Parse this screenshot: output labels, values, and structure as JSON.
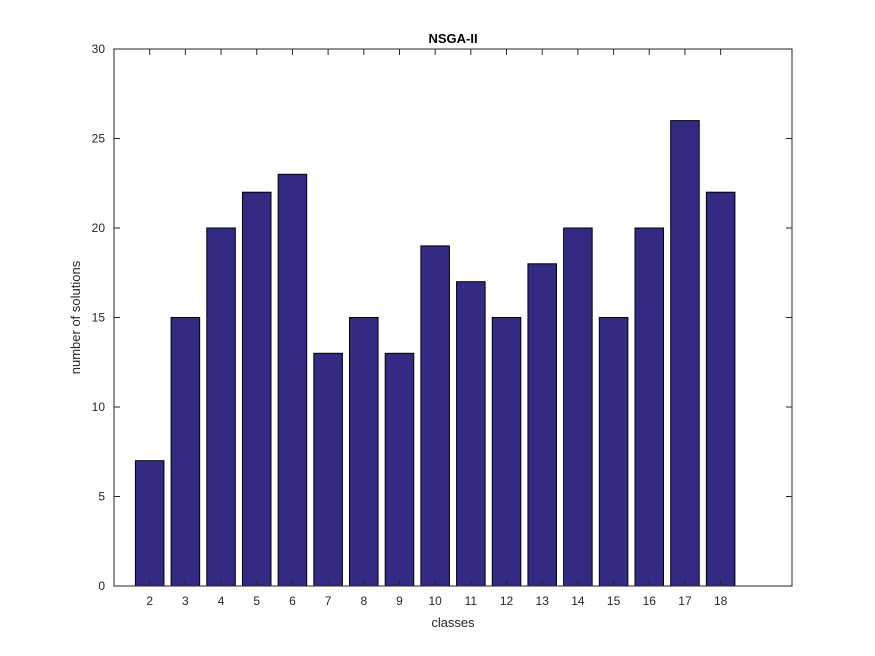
{
  "chart_data": {
    "type": "bar",
    "title": "NSGA-II",
    "xlabel": "classes",
    "ylabel": "number of solutions",
    "categories": [
      "2",
      "3",
      "4",
      "5",
      "6",
      "7",
      "8",
      "9",
      "10",
      "11",
      "12",
      "13",
      "14",
      "15",
      "16",
      "17",
      "18"
    ],
    "values": [
      7,
      15,
      20,
      22,
      23,
      13,
      15,
      13,
      19,
      17,
      15,
      18,
      20,
      15,
      20,
      26,
      22
    ],
    "xlim": [
      0,
      19
    ],
    "ylim": [
      0,
      30
    ],
    "yticks": [
      0,
      5,
      10,
      15,
      20,
      25,
      30
    ],
    "grid": false,
    "bar_color": "#332a83",
    "edge_color": "#000000"
  }
}
